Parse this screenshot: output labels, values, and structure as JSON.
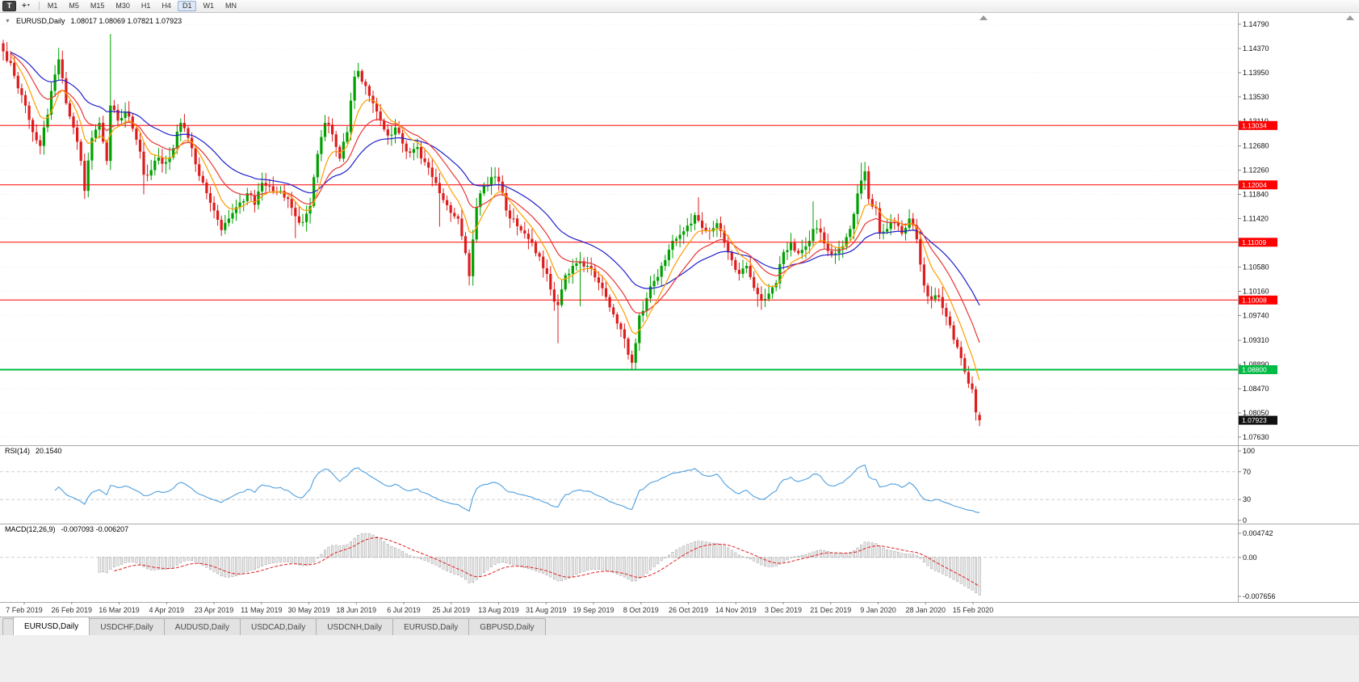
{
  "toolbar": {
    "chart_type_button": "T",
    "crosshair_icon": "+",
    "dropdown_icon": "▾",
    "timeframes": [
      "M1",
      "M5",
      "M15",
      "M30",
      "H1",
      "H4",
      "D1",
      "W1",
      "MN"
    ],
    "active_timeframe": "D1"
  },
  "header": {
    "collapse_icon": "▼",
    "symbol_period": "EURUSD,Daily",
    "ohlc_text": "1.08017 1.08069 1.07821 1.07923"
  },
  "rsi_panel": {
    "label": "RSI(14)",
    "value": "20.1540"
  },
  "macd_panel": {
    "label": "MACD(12,26,9)",
    "values": "-0.007093 -0.006207"
  },
  "tabs": [
    {
      "label": "EURUSD,Daily",
      "active": true
    },
    {
      "label": "USDCHF,Daily",
      "active": false
    },
    {
      "label": "AUDUSD,Daily",
      "active": false
    },
    {
      "label": "USDCAD,Daily",
      "active": false
    },
    {
      "label": "USDCNH,Daily",
      "active": false
    },
    {
      "label": "EURUSD,Daily",
      "active": false
    },
    {
      "label": "GBPUSD,Daily",
      "active": false
    }
  ],
  "chart_data": {
    "type": "candlestick",
    "symbol": "EURUSD",
    "timeframe": "Daily",
    "num_candles": 265,
    "price_range": {
      "top": 1.1479,
      "bottom": 1.0763
    },
    "last_candle": {
      "o": 1.08017,
      "h": 1.08069,
      "l": 1.07821,
      "c": 1.07923
    },
    "candle_colors": {
      "up": "#00a000",
      "down": "#dd1d1d"
    },
    "noise": 0.0014,
    "close_anchors": [
      [
        0,
        1.1432
      ],
      [
        2,
        1.1412
      ],
      [
        4,
        1.1368
      ],
      [
        6,
        1.1338
      ],
      [
        8,
        1.1292
      ],
      [
        10,
        1.1268
      ],
      [
        12,
        1.1322
      ],
      [
        14,
        1.1392
      ],
      [
        15,
        1.1418
      ],
      [
        17,
        1.1342
      ],
      [
        19,
        1.13
      ],
      [
        21,
        1.1242
      ],
      [
        22,
        1.119
      ],
      [
        24,
        1.1282
      ],
      [
        26,
        1.1308
      ],
      [
        28,
        1.1242
      ],
      [
        29,
        1.1338
      ],
      [
        31,
        1.1312
      ],
      [
        33,
        1.1328
      ],
      [
        35,
        1.1298
      ],
      [
        37,
        1.1258
      ],
      [
        38,
        1.1218
      ],
      [
        40,
        1.1226
      ],
      [
        42,
        1.1248
      ],
      [
        44,
        1.124
      ],
      [
        46,
        1.1264
      ],
      [
        48,
        1.1308
      ],
      [
        50,
        1.1282
      ],
      [
        53,
        1.1216
      ],
      [
        55,
        1.1186
      ],
      [
        57,
        1.1156
      ],
      [
        59,
        1.1122
      ],
      [
        61,
        1.1142
      ],
      [
        64,
        1.117
      ],
      [
        66,
        1.1186
      ],
      [
        68,
        1.1166
      ],
      [
        70,
        1.1204
      ],
      [
        72,
        1.1198
      ],
      [
        75,
        1.119
      ],
      [
        77,
        1.1176
      ],
      [
        79,
        1.1146
      ],
      [
        81,
        1.1136
      ],
      [
        83,
        1.1164
      ],
      [
        85,
        1.1254
      ],
      [
        87,
        1.1308
      ],
      [
        89,
        1.1288
      ],
      [
        91,
        1.1246
      ],
      [
        93,
        1.1292
      ],
      [
        95,
        1.1388
      ],
      [
        96,
        1.1398
      ],
      [
        98,
        1.1372
      ],
      [
        100,
        1.1342
      ],
      [
        102,
        1.1312
      ],
      [
        104,
        1.1286
      ],
      [
        106,
        1.13
      ],
      [
        108,
        1.1272
      ],
      [
        110,
        1.1256
      ],
      [
        112,
        1.1266
      ],
      [
        114,
        1.124
      ],
      [
        116,
        1.1214
      ],
      [
        118,
        1.1186
      ],
      [
        121,
        1.1152
      ],
      [
        123,
        1.1142
      ],
      [
        125,
        1.1082
      ],
      [
        126,
        1.1042
      ],
      [
        128,
        1.1162
      ],
      [
        130,
        1.1198
      ],
      [
        132,
        1.1214
      ],
      [
        134,
        1.1206
      ],
      [
        136,
        1.1156
      ],
      [
        138,
        1.1142
      ],
      [
        141,
        1.1116
      ],
      [
        143,
        1.11
      ],
      [
        145,
        1.1076
      ],
      [
        147,
        1.1046
      ],
      [
        149,
        1.0998
      ],
      [
        150,
        1.0992
      ],
      [
        152,
        1.1044
      ],
      [
        154,
        1.106
      ],
      [
        156,
        1.1068
      ],
      [
        158,
        1.106
      ],
      [
        160,
        1.104
      ],
      [
        163,
        1.1006
      ],
      [
        165,
        1.0976
      ],
      [
        167,
        1.095
      ],
      [
        169,
        1.0906
      ],
      [
        170,
        1.0892
      ],
      [
        172,
        1.0974
      ],
      [
        174,
        1.1004
      ],
      [
        176,
        1.1034
      ],
      [
        178,
        1.106
      ],
      [
        180,
        1.1088
      ],
      [
        183,
        1.1114
      ],
      [
        185,
        1.113
      ],
      [
        187,
        1.1148
      ],
      [
        189,
        1.1126
      ],
      [
        191,
        1.112
      ],
      [
        193,
        1.1134
      ],
      [
        195,
        1.11
      ],
      [
        197,
        1.107
      ],
      [
        199,
        1.1046
      ],
      [
        201,
        1.106
      ],
      [
        203,
        1.1022
      ],
      [
        205,
        1.1
      ],
      [
        207,
        1.1012
      ],
      [
        209,
        1.103
      ],
      [
        211,
        1.1084
      ],
      [
        213,
        1.11
      ],
      [
        215,
        1.1082
      ],
      [
        217,
        1.1094
      ],
      [
        219,
        1.1124
      ],
      [
        221,
        1.1118
      ],
      [
        224,
        1.108
      ],
      [
        226,
        1.109
      ],
      [
        228,
        1.111
      ],
      [
        230,
        1.115
      ],
      [
        232,
        1.1208
      ],
      [
        233,
        1.1224
      ],
      [
        234,
        1.1176
      ],
      [
        236,
        1.116
      ],
      [
        237,
        1.1116
      ],
      [
        239,
        1.1124
      ],
      [
        241,
        1.1134
      ],
      [
        243,
        1.1116
      ],
      [
        245,
        1.1142
      ],
      [
        247,
        1.1106
      ],
      [
        249,
        1.1026
      ],
      [
        251,
        1.1002
      ],
      [
        253,
        1.1006
      ],
      [
        255,
        1.0972
      ],
      [
        257,
        1.0932
      ],
      [
        259,
        1.09
      ],
      [
        260,
        1.0876
      ],
      [
        261,
        1.0856
      ],
      [
        262,
        1.0846
      ],
      [
        263,
        1.0806
      ],
      [
        264,
        1.07923
      ]
    ],
    "wick_extremes": [
      {
        "d": 1,
        "h": 1.1448
      },
      {
        "d": 15,
        "h": 1.1438
      },
      {
        "d": 22,
        "l": 1.1176
      },
      {
        "d": 29,
        "h": 1.1462,
        "l": 1.1282
      },
      {
        "d": 38,
        "l": 1.1184
      },
      {
        "d": 59,
        "l": 1.1112
      },
      {
        "d": 79,
        "l": 1.1108
      },
      {
        "d": 96,
        "h": 1.1412
      },
      {
        "d": 118,
        "l": 1.1128
      },
      {
        "d": 126,
        "l": 1.1027
      },
      {
        "d": 150,
        "l": 1.0926
      },
      {
        "d": 156,
        "h": 1.1084,
        "l": 1.099
      },
      {
        "d": 170,
        "l": 1.0879
      },
      {
        "d": 188,
        "h": 1.1179
      },
      {
        "d": 204,
        "l": 1.0989
      },
      {
        "d": 219,
        "h": 1.1172
      },
      {
        "d": 232,
        "h": 1.1239
      },
      {
        "d": 245,
        "h": 1.1156
      }
    ],
    "moving_averages": [
      {
        "name": "fast",
        "period": 8,
        "color": "#ff9d00"
      },
      {
        "name": "medium",
        "period": 17,
        "color": "#e83535"
      },
      {
        "name": "slow",
        "period": 34,
        "color": "#2020cc"
      }
    ],
    "horizontal_levels": [
      {
        "price": 1.13034,
        "label": "1.13034",
        "color": "#fe0000",
        "width": 1
      },
      {
        "price": 1.12004,
        "label": "1.12004",
        "color": "#fe0000",
        "width": 1
      },
      {
        "price": 1.11009,
        "label": "1.11009",
        "color": "#fe0000",
        "width": 1
      },
      {
        "price": 1.10008,
        "label": "1.10008",
        "color": "#fe0000",
        "width": 1
      },
      {
        "price": 1.088,
        "label": "1.08800",
        "color": "#00bb44",
        "width": 2
      }
    ],
    "current_price": {
      "value": 1.07923,
      "label": "1.07923",
      "badge_color": "#101010"
    },
    "price_axis_labels": [
      "1.14790",
      "1.14370",
      "1.13950",
      "1.13530",
      "1.13110",
      "1.12680",
      "1.12260",
      "1.11840",
      "1.11420",
      "1.10580",
      "1.10160",
      "1.09740",
      "1.09310",
      "1.08890",
      "1.08470",
      "1.08050",
      "1.07630"
    ],
    "date_labels": [
      "7 Feb 2019",
      "26 Feb 2019",
      "16 Mar 2019",
      "4 Apr 2019",
      "23 Apr 2019",
      "11 May 2019",
      "30 May 2019",
      "18 Jun 2019",
      "6 Jul 2019",
      "25 Jul 2019",
      "13 Aug 2019",
      "31 Aug 2019",
      "19 Sep 2019",
      "8 Oct 2019",
      "26 Oct 2019",
      "14 Nov 2019",
      "3 Dec 2019",
      "21 Dec 2019",
      "9 Jan 2020",
      "28 Jan 2020",
      "15 Feb 2020"
    ],
    "rsi": {
      "period": 14,
      "current": 20.154,
      "color": "#4e9fdf",
      "levels": [
        70,
        30
      ],
      "axis_labels": [
        {
          "v": 100,
          "label": "100"
        },
        {
          "v": 70,
          "label": "70"
        },
        {
          "v": 30,
          "label": "30"
        },
        {
          "v": 0,
          "label": "0"
        }
      ]
    },
    "macd": {
      "fast": 12,
      "slow": 26,
      "signal": 9,
      "current_macd": -0.007093,
      "current_signal": -0.006207,
      "range": [
        -0.007656,
        0.004742
      ],
      "histogram_fill": "#ececec",
      "histogram_stroke": "#9c9c9c",
      "signal_color": "#e02020",
      "axis_labels": [
        {
          "v": 0.004742,
          "label": "0.004742"
        },
        {
          "v": 0,
          "label": "0.00"
        },
        {
          "v": -0.007656,
          "label": "-0.007656"
        }
      ]
    }
  }
}
